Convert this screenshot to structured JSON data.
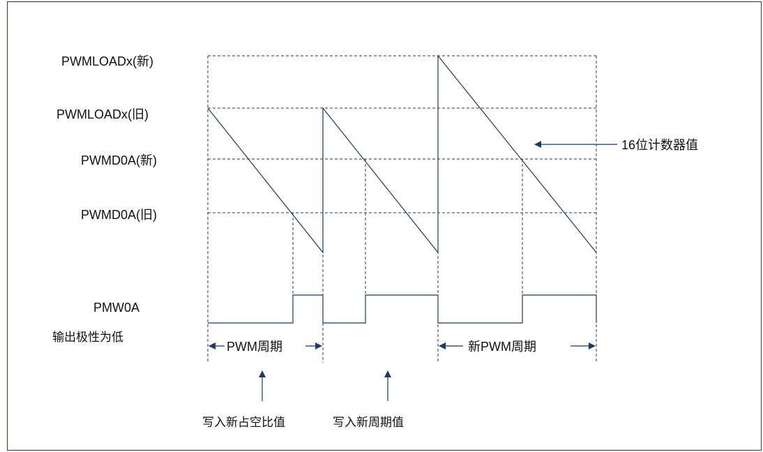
{
  "diagram": {
    "level_labels": {
      "load_new": "PWMLOADx(新)",
      "load_old": "PWMLOADx(旧)",
      "d0a_new": "PWMD0A(新)",
      "d0a_old": "PWMD0A(旧)"
    },
    "output_label_line1": "PMW0A",
    "output_label_line2": "输出极性为低",
    "counter_label": "16位计数器值",
    "period_label": "PWM周期",
    "new_period_label": "新PWM周期",
    "write_duty_label": "写入新占空比值",
    "write_period_label": "写入新周期值",
    "colors": {
      "line": "#1f3864",
      "text": "#111111"
    }
  }
}
